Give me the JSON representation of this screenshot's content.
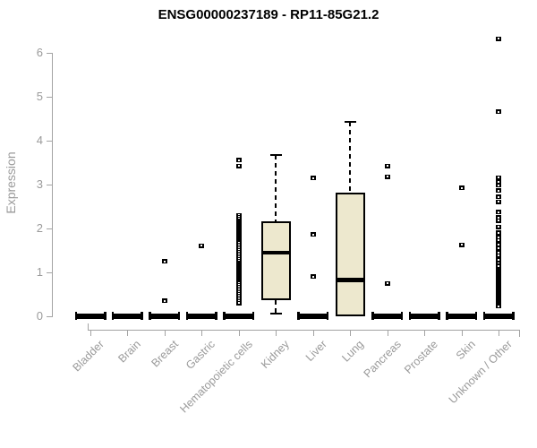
{
  "chart_data": {
    "type": "boxplot",
    "title": "ENSG00000237189 - RP11-85G21.2",
    "ylabel": "Expression",
    "xlabel": "",
    "ylim": [
      0,
      6.5
    ],
    "yticks": [
      0,
      1,
      2,
      3,
      4,
      5,
      6
    ],
    "grid": false,
    "legend": "none",
    "categories": [
      "Bladder",
      "Brain",
      "Breast",
      "Gastric",
      "Hematopoietic cells",
      "Kidney",
      "Liver",
      "Lung",
      "Pancreas",
      "Prostate",
      "Skin",
      "Unknown / Other"
    ],
    "series": [
      {
        "category": "Bladder",
        "whisker_low": 0,
        "q1": 0,
        "median": 0,
        "q3": 0,
        "whisker_high": 0,
        "outliers": []
      },
      {
        "category": "Brain",
        "whisker_low": 0,
        "q1": 0,
        "median": 0,
        "q3": 0,
        "whisker_high": 0,
        "outliers": []
      },
      {
        "category": "Breast",
        "whisker_low": 0,
        "q1": 0,
        "median": 0,
        "q3": 0,
        "whisker_high": 0,
        "outliers": [
          1.25,
          0.35
        ]
      },
      {
        "category": "Gastric",
        "whisker_low": 0,
        "q1": 0,
        "median": 0,
        "q3": 0,
        "whisker_high": 0,
        "outliers": [
          1.6
        ]
      },
      {
        "category": "Hematopoietic cells",
        "whisker_low": 0,
        "q1": 0,
        "median": 0,
        "q3": 0,
        "whisker_high": 0,
        "outliers": [
          3.55,
          3.42,
          2.3,
          2.26,
          2.22,
          2.18,
          2.14,
          2.1,
          2.06,
          2.02,
          1.98,
          1.94,
          1.9,
          1.86,
          1.82,
          1.78,
          1.74,
          1.7,
          1.66,
          1.62,
          1.58,
          1.54,
          1.5,
          1.46,
          1.42,
          1.38,
          1.34,
          1.3,
          1.26,
          1.22,
          1.18,
          1.14,
          1.1,
          1.06,
          1.02,
          0.98,
          0.94,
          0.9,
          0.86,
          0.82,
          0.78,
          0.74,
          0.7,
          0.66,
          0.62,
          0.58,
          0.54,
          0.5,
          0.46,
          0.42,
          0.38,
          0.34,
          0.3
        ]
      },
      {
        "category": "Kidney",
        "whisker_low": 0.05,
        "q1": 0.37,
        "median": 1.45,
        "q3": 2.17,
        "whisker_high": 3.68,
        "outliers": []
      },
      {
        "category": "Liver",
        "whisker_low": 0,
        "q1": 0,
        "median": 0,
        "q3": 0,
        "whisker_high": 0,
        "outliers": [
          3.15,
          1.86,
          0.9
        ]
      },
      {
        "category": "Lung",
        "whisker_low": 0,
        "q1": 0,
        "median": 0.83,
        "q3": 2.82,
        "whisker_high": 4.43,
        "outliers": []
      },
      {
        "category": "Pancreas",
        "whisker_low": 0,
        "q1": 0,
        "median": 0,
        "q3": 0,
        "whisker_high": 0,
        "outliers": [
          3.42,
          3.18,
          0.75
        ]
      },
      {
        "category": "Prostate",
        "whisker_low": 0,
        "q1": 0,
        "median": 0,
        "q3": 0,
        "whisker_high": 0,
        "outliers": []
      },
      {
        "category": "Skin",
        "whisker_low": 0,
        "q1": 0,
        "median": 0,
        "q3": 0,
        "whisker_high": 0,
        "outliers": [
          2.92,
          1.62
        ]
      },
      {
        "category": "Unknown / Other",
        "whisker_low": 0,
        "q1": 0,
        "median": 0,
        "q3": 0,
        "whisker_high": 0,
        "outliers": [
          6.32,
          4.66,
          3.16,
          3.05,
          2.98,
          2.86,
          2.72,
          2.6,
          2.37,
          2.25,
          2.18,
          2.03,
          1.9,
          1.8,
          1.73,
          1.62,
          1.55,
          1.45,
          1.38,
          1.28,
          1.2,
          1.14,
          1.05,
          1.02,
          0.99,
          0.96,
          0.93,
          0.9,
          0.87,
          0.84,
          0.81,
          0.78,
          0.75,
          0.72,
          0.69,
          0.66,
          0.63,
          0.6,
          0.57,
          0.54,
          0.51,
          0.48,
          0.45,
          0.42,
          0.39,
          0.36,
          0.33,
          0.3,
          0.27,
          0.24,
          0.22
        ]
      }
    ],
    "colors": {
      "box_fill": "#EDE8CE",
      "box_border": "#000000",
      "axis": "#A3A3A3",
      "tick_label": "#9A9A9A",
      "title": "#000000",
      "background": "#FFFFFF"
    }
  }
}
